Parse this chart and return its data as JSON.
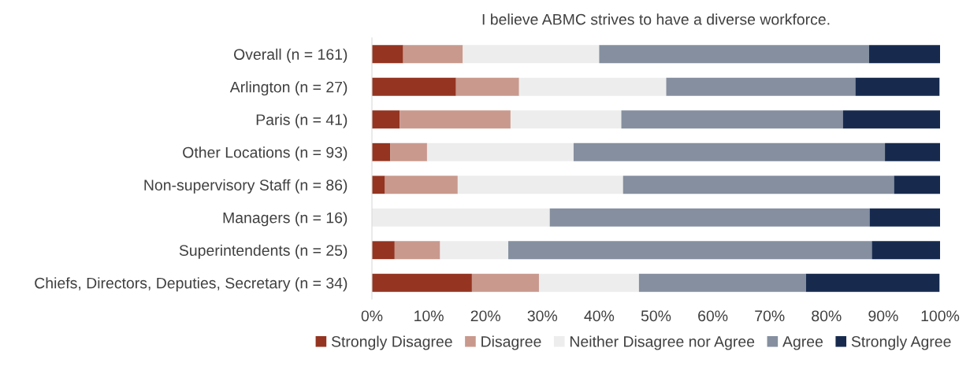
{
  "chart_data": {
    "type": "bar",
    "orientation": "horizontal",
    "stacked": true,
    "title": "I believe ABMC strives to have a diverse workforce.",
    "categories": [
      "Overall (n = 161)",
      "Arlington (n = 27)",
      "Paris (n = 41)",
      "Other Locations (n = 93)",
      "Non-supervisory Staff (n = 86)",
      "Managers (n = 16)",
      "Superintendents (n = 25)",
      "Chiefs, Directors, Deputies, Secretary (n = 34)"
    ],
    "series": [
      {
        "name": "Strongly Disagree",
        "color": "#943421",
        "values": [
          5.5,
          14.8,
          4.9,
          3.2,
          2.3,
          0,
          4.0,
          17.6
        ]
      },
      {
        "name": "Disagree",
        "color": "#c9998d",
        "values": [
          10.5,
          11.1,
          19.5,
          6.5,
          12.8,
          0,
          8.0,
          11.8
        ]
      },
      {
        "name": "Neither Disagree nor Agree",
        "color": "#ededed",
        "values": [
          24.0,
          25.9,
          19.5,
          25.8,
          29.1,
          31.3,
          12.0,
          17.6
        ]
      },
      {
        "name": "Agree",
        "color": "#858f9f",
        "values": [
          47.5,
          33.3,
          39.0,
          54.8,
          47.7,
          56.3,
          64.0,
          29.4
        ]
      },
      {
        "name": "Strongly Agree",
        "color": "#172a4e",
        "values": [
          12.5,
          14.8,
          17.1,
          9.7,
          8.1,
          12.5,
          12.0,
          23.5
        ]
      }
    ],
    "xlim": [
      0,
      100
    ],
    "xticks": [
      {
        "value": 0,
        "label": "0%"
      },
      {
        "value": 10,
        "label": "10%"
      },
      {
        "value": 20,
        "label": "20%"
      },
      {
        "value": 30,
        "label": "30%"
      },
      {
        "value": 40,
        "label": "40%"
      },
      {
        "value": 50,
        "label": "50%"
      },
      {
        "value": 60,
        "label": "60%"
      },
      {
        "value": 70,
        "label": "70%"
      },
      {
        "value": 80,
        "label": "80%"
      },
      {
        "value": 90,
        "label": "90%"
      },
      {
        "value": 100,
        "label": "100%"
      }
    ],
    "grid": false,
    "legend": "bottom"
  }
}
